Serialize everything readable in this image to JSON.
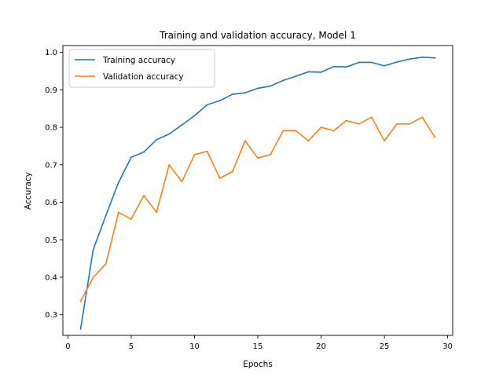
{
  "chart_data": {
    "type": "line",
    "title": "Training and validation accuracy, Model 1",
    "xlabel": "Epochs",
    "ylabel": "Accuracy",
    "xlim": [
      -0.4,
      30.4
    ],
    "ylim": [
      0.245,
      1.018
    ],
    "xticks": [
      0,
      5,
      10,
      15,
      20,
      25,
      30
    ],
    "yticks": [
      0.3,
      0.4,
      0.5,
      0.6,
      0.7,
      0.8,
      0.9,
      1.0
    ],
    "ytick_labels": [
      "0.3",
      "0.4",
      "0.5",
      "0.6",
      "0.7",
      "0.8",
      "0.9",
      "1.0"
    ],
    "grid": false,
    "legend_position": "top-left",
    "x": [
      1,
      2,
      3,
      4,
      5,
      6,
      7,
      8,
      9,
      10,
      11,
      12,
      13,
      14,
      15,
      16,
      17,
      18,
      19,
      20,
      21,
      22,
      23,
      24,
      25,
      26,
      27,
      28,
      29
    ],
    "series": [
      {
        "name": "Training accuracy",
        "color": "#1f77b4",
        "values": [
          0.262,
          0.474,
          0.565,
          0.653,
          0.72,
          0.734,
          0.767,
          0.782,
          0.806,
          0.831,
          0.86,
          0.871,
          0.888,
          0.892,
          0.904,
          0.91,
          0.925,
          0.936,
          0.948,
          0.947,
          0.962,
          0.961,
          0.973,
          0.973,
          0.964,
          0.974,
          0.982,
          0.987,
          0.985
        ]
      },
      {
        "name": "Validation accuracy",
        "color": "#ff7f0e",
        "values": [
          0.336,
          0.4,
          0.436,
          0.573,
          0.555,
          0.618,
          0.573,
          0.7,
          0.655,
          0.727,
          0.736,
          0.664,
          0.682,
          0.764,
          0.718,
          0.727,
          0.791,
          0.791,
          0.764,
          0.8,
          0.791,
          0.818,
          0.809,
          0.827,
          0.764,
          0.809,
          0.809,
          0.827,
          0.773
        ]
      }
    ]
  }
}
